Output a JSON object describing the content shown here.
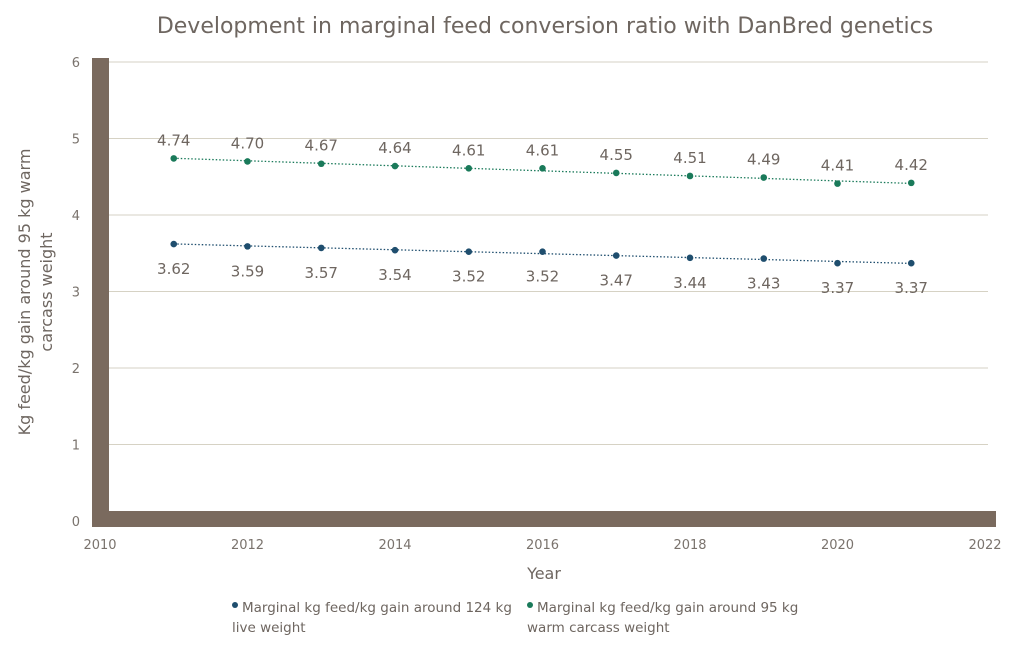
{
  "chart_data": {
    "type": "line",
    "title": "Development in marginal feed conversion ratio with DanBred genetics",
    "xlabel": "Year",
    "ylabel": "Kg feed/kg gain around 95 kg warm carcass weight",
    "xlim": [
      2010,
      2022
    ],
    "ylim": [
      0,
      6
    ],
    "xticks": [
      2010,
      2012,
      2014,
      2016,
      2018,
      2020,
      2022
    ],
    "yticks": [
      0,
      1,
      2,
      3,
      4,
      5,
      6
    ],
    "grid": true,
    "legend_position": "bottom",
    "x": [
      2011,
      2012,
      2013,
      2014,
      2015,
      2016,
      2017,
      2018,
      2019,
      2020,
      2021
    ],
    "series": [
      {
        "name": "Marginal kg feed/kg gain around 124 kg live weight",
        "color": "#1f4e6e",
        "values": [
          3.62,
          3.59,
          3.57,
          3.54,
          3.52,
          3.52,
          3.47,
          3.44,
          3.43,
          3.37,
          3.37
        ],
        "labels": [
          "3.62",
          "3.59",
          "3.57",
          "3.54",
          "3.52",
          "3.52",
          "3.47",
          "3.44",
          "3.43",
          "3.37",
          "3.37"
        ]
      },
      {
        "name": "Marginal kg feed/kg gain around 95 kg warm carcass weight",
        "color": "#1a7a5a",
        "values": [
          4.74,
          4.7,
          4.67,
          4.64,
          4.61,
          4.61,
          4.55,
          4.51,
          4.49,
          4.41,
          4.42
        ],
        "labels": [
          "4.74",
          "4.70",
          "4.67",
          "4.64",
          "4.61",
          "4.61",
          "4.55",
          "4.51",
          "4.49",
          "4.41",
          "4.42"
        ]
      }
    ],
    "trendlines": "dotted linear",
    "axis_color": "#7a6a5e"
  }
}
